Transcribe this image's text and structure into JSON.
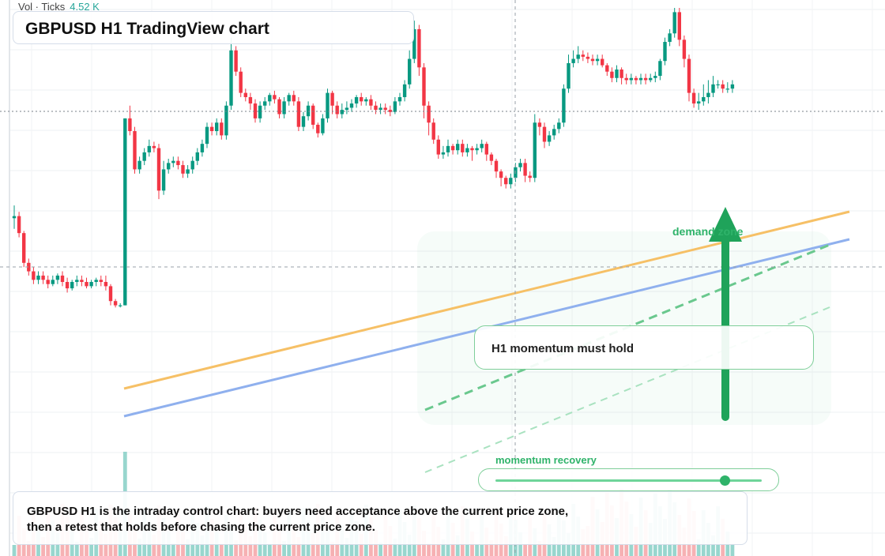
{
  "volume": {
    "label": "Vol · Ticks",
    "value": "4.52 K"
  },
  "title": "GBPUSD H1 TradingView chart",
  "annotations": {
    "callout": "H1 momentum must hold",
    "demand_zone": "demand zone",
    "momentum_title": "momentum recovery",
    "momentum_level": 0.86
  },
  "summary": "GBPUSD H1 is the intraday control chart: buyers need acceptance above the current price zone, then a retest that holds before chasing the current price zone.",
  "colors": {
    "up": "#089981",
    "down": "#f23645",
    "vol_up": "#86cfc6",
    "vol_down": "#f5a3a6",
    "trend_orange": "#f6c066",
    "trend_blue": "#8fb0ee",
    "accent_green": "#2fb36a"
  },
  "chart_data": {
    "type": "candlestick",
    "note_price_scale": "unlabeled",
    "candles": [
      [
        0.505,
        0.51,
        0.535,
        0.48
      ],
      [
        0.51,
        0.47,
        0.52,
        0.46
      ],
      [
        0.47,
        0.4,
        0.475,
        0.39
      ],
      [
        0.4,
        0.38,
        0.41,
        0.37
      ],
      [
        0.38,
        0.36,
        0.39,
        0.35
      ],
      [
        0.36,
        0.37,
        0.38,
        0.35
      ],
      [
        0.37,
        0.36,
        0.38,
        0.35
      ],
      [
        0.36,
        0.35,
        0.37,
        0.34
      ],
      [
        0.35,
        0.36,
        0.37,
        0.345
      ],
      [
        0.36,
        0.37,
        0.375,
        0.35
      ],
      [
        0.37,
        0.355,
        0.38,
        0.345
      ],
      [
        0.355,
        0.34,
        0.365,
        0.33
      ],
      [
        0.34,
        0.355,
        0.36,
        0.335
      ],
      [
        0.355,
        0.36,
        0.37,
        0.345
      ],
      [
        0.36,
        0.355,
        0.37,
        0.345
      ],
      [
        0.355,
        0.345,
        0.365,
        0.34
      ],
      [
        0.345,
        0.355,
        0.36,
        0.34
      ],
      [
        0.355,
        0.36,
        0.365,
        0.345
      ],
      [
        0.36,
        0.355,
        0.37,
        0.345
      ],
      [
        0.355,
        0.345,
        0.37,
        0.335
      ],
      [
        0.345,
        0.31,
        0.35,
        0.3
      ],
      [
        0.31,
        0.3,
        0.315,
        0.295
      ],
      [
        0.3,
        0.3,
        0.305,
        0.295
      ],
      [
        0.3,
        0.74,
        0.74,
        0.3
      ],
      [
        0.74,
        0.71,
        0.77,
        0.7
      ],
      [
        0.71,
        0.62,
        0.72,
        0.61
      ],
      [
        0.62,
        0.64,
        0.65,
        0.61
      ],
      [
        0.64,
        0.66,
        0.67,
        0.63
      ],
      [
        0.66,
        0.675,
        0.69,
        0.65
      ],
      [
        0.675,
        0.67,
        0.685,
        0.66
      ],
      [
        0.67,
        0.57,
        0.68,
        0.55
      ],
      [
        0.57,
        0.62,
        0.64,
        0.56
      ],
      [
        0.62,
        0.635,
        0.645,
        0.61
      ],
      [
        0.635,
        0.64,
        0.65,
        0.625
      ],
      [
        0.64,
        0.63,
        0.65,
        0.62
      ],
      [
        0.63,
        0.61,
        0.64,
        0.6
      ],
      [
        0.61,
        0.62,
        0.63,
        0.6
      ],
      [
        0.62,
        0.64,
        0.65,
        0.61
      ],
      [
        0.64,
        0.66,
        0.67,
        0.63
      ],
      [
        0.66,
        0.68,
        0.69,
        0.65
      ],
      [
        0.68,
        0.72,
        0.73,
        0.67
      ],
      [
        0.72,
        0.71,
        0.73,
        0.7
      ],
      [
        0.71,
        0.73,
        0.74,
        0.7
      ],
      [
        0.73,
        0.7,
        0.74,
        0.69
      ],
      [
        0.7,
        0.77,
        0.78,
        0.69
      ],
      [
        0.77,
        0.9,
        0.93,
        0.76
      ],
      [
        0.9,
        0.85,
        0.91,
        0.84
      ],
      [
        0.85,
        0.8,
        0.86,
        0.79
      ],
      [
        0.8,
        0.79,
        0.81,
        0.78
      ],
      [
        0.79,
        0.775,
        0.8,
        0.76
      ],
      [
        0.775,
        0.74,
        0.785,
        0.73
      ],
      [
        0.74,
        0.77,
        0.78,
        0.73
      ],
      [
        0.77,
        0.78,
        0.79,
        0.76
      ],
      [
        0.78,
        0.795,
        0.8,
        0.77
      ],
      [
        0.795,
        0.785,
        0.805,
        0.775
      ],
      [
        0.785,
        0.75,
        0.79,
        0.74
      ],
      [
        0.75,
        0.78,
        0.79,
        0.74
      ],
      [
        0.78,
        0.795,
        0.8,
        0.77
      ],
      [
        0.795,
        0.78,
        0.805,
        0.77
      ],
      [
        0.78,
        0.72,
        0.79,
        0.71
      ],
      [
        0.72,
        0.745,
        0.755,
        0.71
      ],
      [
        0.745,
        0.77,
        0.78,
        0.735
      ],
      [
        0.77,
        0.725,
        0.775,
        0.715
      ],
      [
        0.725,
        0.705,
        0.73,
        0.695
      ],
      [
        0.705,
        0.74,
        0.75,
        0.7
      ],
      [
        0.74,
        0.8,
        0.81,
        0.73
      ],
      [
        0.8,
        0.77,
        0.805,
        0.75
      ],
      [
        0.77,
        0.75,
        0.78,
        0.74
      ],
      [
        0.75,
        0.76,
        0.775,
        0.74
      ],
      [
        0.76,
        0.765,
        0.78,
        0.75
      ],
      [
        0.765,
        0.775,
        0.785,
        0.755
      ],
      [
        0.775,
        0.79,
        0.795,
        0.765
      ],
      [
        0.79,
        0.78,
        0.8,
        0.77
      ],
      [
        0.78,
        0.785,
        0.79,
        0.77
      ],
      [
        0.785,
        0.77,
        0.795,
        0.76
      ],
      [
        0.77,
        0.76,
        0.78,
        0.75
      ],
      [
        0.76,
        0.765,
        0.775,
        0.75
      ],
      [
        0.765,
        0.76,
        0.775,
        0.75
      ],
      [
        0.76,
        0.755,
        0.77,
        0.745
      ],
      [
        0.755,
        0.78,
        0.79,
        0.75
      ],
      [
        0.78,
        0.79,
        0.8,
        0.77
      ],
      [
        0.79,
        0.82,
        0.83,
        0.78
      ],
      [
        0.82,
        0.88,
        0.9,
        0.81
      ],
      [
        0.88,
        0.95,
        0.97,
        0.87
      ],
      [
        0.95,
        0.86,
        0.96,
        0.84
      ],
      [
        0.86,
        0.77,
        0.87,
        0.74
      ],
      [
        0.77,
        0.73,
        0.78,
        0.7
      ],
      [
        0.73,
        0.69,
        0.74,
        0.68
      ],
      [
        0.69,
        0.655,
        0.7,
        0.645
      ],
      [
        0.655,
        0.66,
        0.675,
        0.645
      ],
      [
        0.66,
        0.675,
        0.69,
        0.65
      ],
      [
        0.675,
        0.665,
        0.68,
        0.655
      ],
      [
        0.665,
        0.68,
        0.69,
        0.655
      ],
      [
        0.68,
        0.66,
        0.69,
        0.65
      ],
      [
        0.66,
        0.67,
        0.68,
        0.65
      ],
      [
        0.67,
        0.665,
        0.675,
        0.64
      ],
      [
        0.665,
        0.67,
        0.68,
        0.655
      ],
      [
        0.67,
        0.68,
        0.69,
        0.66
      ],
      [
        0.68,
        0.655,
        0.685,
        0.64
      ],
      [
        0.655,
        0.64,
        0.66,
        0.63
      ],
      [
        0.64,
        0.615,
        0.645,
        0.6
      ],
      [
        0.615,
        0.6,
        0.62,
        0.58
      ],
      [
        0.6,
        0.585,
        0.605,
        0.575
      ],
      [
        0.585,
        0.6,
        0.61,
        0.575
      ],
      [
        0.6,
        0.625,
        0.635,
        0.59
      ],
      [
        0.625,
        0.635,
        0.645,
        0.615
      ],
      [
        0.635,
        0.605,
        0.645,
        0.59
      ],
      [
        0.605,
        0.6,
        0.615,
        0.59
      ],
      [
        0.6,
        0.73,
        0.75,
        0.59
      ],
      [
        0.73,
        0.72,
        0.74,
        0.7
      ],
      [
        0.72,
        0.685,
        0.73,
        0.67
      ],
      [
        0.685,
        0.7,
        0.71,
        0.675
      ],
      [
        0.7,
        0.715,
        0.725,
        0.69
      ],
      [
        0.715,
        0.73,
        0.74,
        0.705
      ],
      [
        0.73,
        0.81,
        0.82,
        0.72
      ],
      [
        0.81,
        0.87,
        0.89,
        0.8
      ],
      [
        0.87,
        0.88,
        0.9,
        0.86
      ],
      [
        0.88,
        0.89,
        0.91,
        0.87
      ],
      [
        0.89,
        0.885,
        0.9,
        0.875
      ],
      [
        0.885,
        0.88,
        0.895,
        0.87
      ],
      [
        0.88,
        0.875,
        0.89,
        0.865
      ],
      [
        0.875,
        0.88,
        0.89,
        0.865
      ],
      [
        0.88,
        0.865,
        0.89,
        0.86
      ],
      [
        0.865,
        0.85,
        0.87,
        0.84
      ],
      [
        0.85,
        0.835,
        0.86,
        0.825
      ],
      [
        0.835,
        0.855,
        0.865,
        0.825
      ],
      [
        0.855,
        0.835,
        0.86,
        0.82
      ],
      [
        0.835,
        0.83,
        0.845,
        0.82
      ],
      [
        0.83,
        0.835,
        0.845,
        0.82
      ],
      [
        0.835,
        0.83,
        0.84,
        0.82
      ],
      [
        0.83,
        0.835,
        0.845,
        0.82
      ],
      [
        0.835,
        0.83,
        0.845,
        0.82
      ],
      [
        0.83,
        0.835,
        0.845,
        0.825
      ],
      [
        0.835,
        0.84,
        0.85,
        0.825
      ],
      [
        0.84,
        0.875,
        0.88,
        0.83
      ],
      [
        0.875,
        0.92,
        0.93,
        0.865
      ],
      [
        0.92,
        0.94,
        0.95,
        0.91
      ],
      [
        0.94,
        0.99,
        1.0,
        0.93
      ],
      [
        0.99,
        0.925,
        1.0,
        0.91
      ],
      [
        0.925,
        0.88,
        0.935,
        0.86
      ],
      [
        0.88,
        0.8,
        0.89,
        0.78
      ],
      [
        0.8,
        0.775,
        0.81,
        0.765
      ],
      [
        0.775,
        0.78,
        0.8,
        0.76
      ],
      [
        0.78,
        0.79,
        0.82,
        0.77
      ],
      [
        0.79,
        0.8,
        0.83,
        0.775
      ],
      [
        0.8,
        0.82,
        0.84,
        0.79
      ],
      [
        0.82,
        0.82,
        0.83,
        0.81
      ],
      [
        0.82,
        0.81,
        0.83,
        0.8
      ],
      [
        0.81,
        0.81,
        0.825,
        0.8
      ],
      [
        0.81,
        0.82,
        0.83,
        0.8
      ]
    ]
  }
}
